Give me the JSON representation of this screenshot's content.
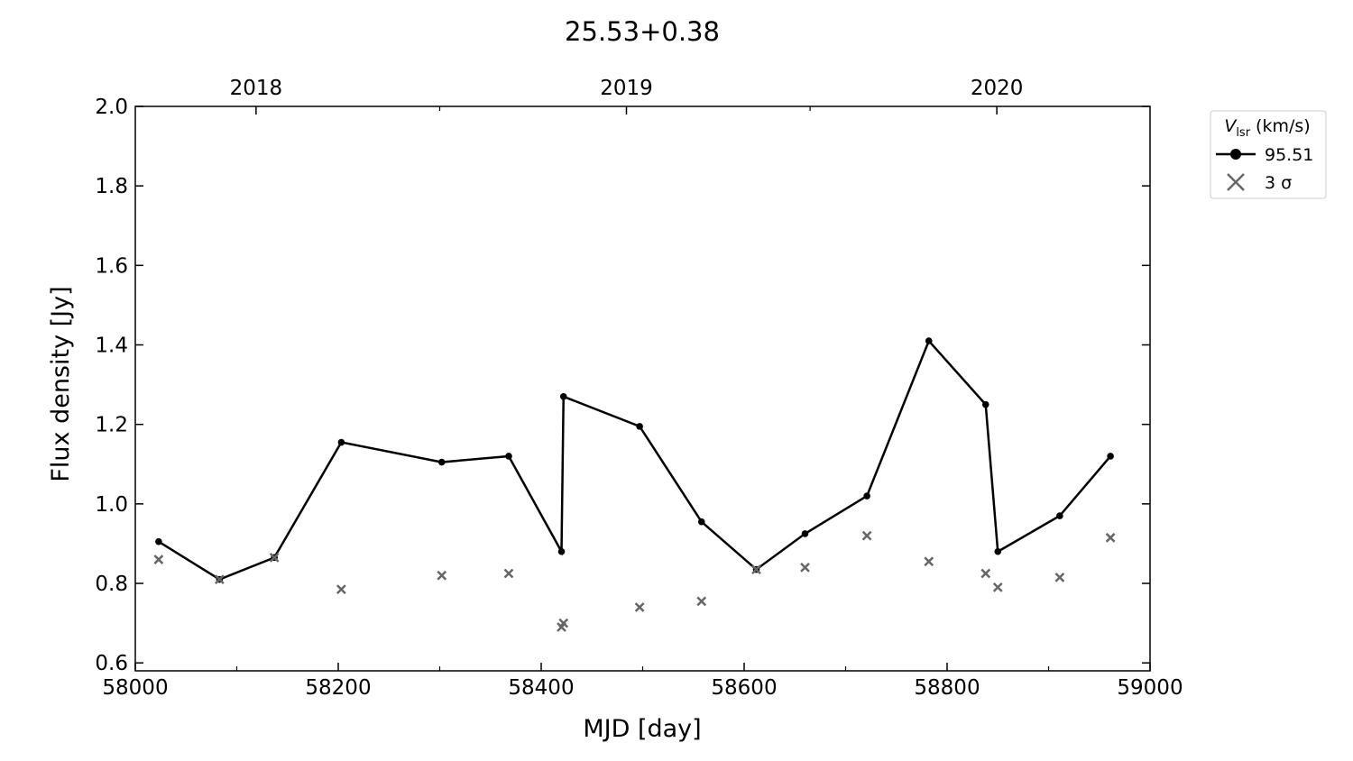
{
  "chart_data": {
    "type": "line",
    "title": "25.53+0.38",
    "xlabel": "MJD [day]",
    "ylabel": "Flux density [Jy]",
    "xlim": [
      58000,
      59000
    ],
    "xticks": [
      58000,
      58200,
      58400,
      58600,
      58800,
      59000
    ],
    "xminorticks": [
      58100,
      58300,
      58500,
      58700,
      58900
    ],
    "x2ticks": [
      {
        "value": 58119,
        "label": "2018"
      },
      {
        "value": 58484,
        "label": "2019"
      },
      {
        "value": 58849,
        "label": "2020"
      }
    ],
    "x2minorticks": [
      58300,
      58665
    ],
    "ylim": [
      0.58,
      2.0
    ],
    "yticks": [
      0.6,
      0.8,
      {
        "value": 1,
        "label": "1.0"
      },
      1.2,
      1.4,
      1.6,
      1.8,
      {
        "value": 2,
        "label": "2.0"
      }
    ],
    "legend_title": {
      "symbol": "V",
      "subscript": "lsr",
      "unit": "(km/s)"
    },
    "legend_position": "outside upper right",
    "series": [
      {
        "name": "95.51",
        "color": "#000000",
        "marker": "o",
        "linestyle": "solid",
        "x": [
          58023,
          58083,
          58137,
          58203,
          58302,
          58368,
          58420,
          58422,
          58497,
          58558,
          58612,
          58660,
          58721,
          58782,
          58838,
          58850,
          58911,
          58961
        ],
        "values": [
          0.905,
          0.81,
          0.865,
          1.155,
          1.105,
          1.12,
          0.88,
          1.27,
          1.195,
          0.955,
          0.835,
          0.925,
          1.02,
          1.41,
          1.25,
          0.88,
          0.97,
          1.12
        ]
      },
      {
        "name": "3 σ",
        "color": "#666666",
        "marker": "x",
        "linestyle": "none",
        "x": [
          58023,
          58083,
          58137,
          58203,
          58302,
          58368,
          58420,
          58422,
          58497,
          58558,
          58612,
          58660,
          58721,
          58782,
          58838,
          58850,
          58911,
          58961
        ],
        "values": [
          0.86,
          0.81,
          0.865,
          0.785,
          0.82,
          0.825,
          0.69,
          0.7,
          0.74,
          0.755,
          0.835,
          0.84,
          0.92,
          0.855,
          0.825,
          0.79,
          0.815,
          0.915
        ]
      }
    ]
  }
}
